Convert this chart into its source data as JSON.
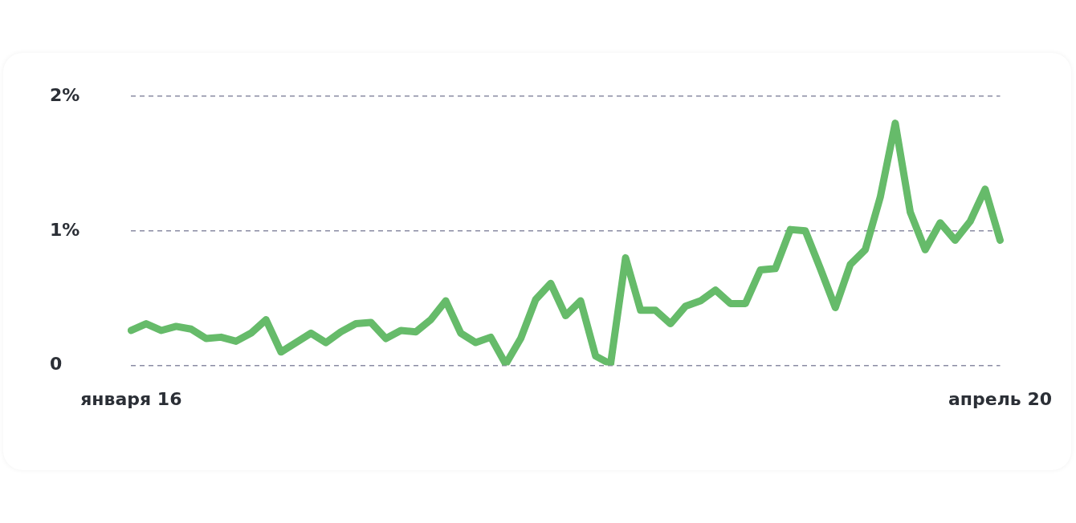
{
  "chart_data": {
    "type": "line",
    "categories": [
      "января 16",
      null,
      null,
      null,
      null,
      null,
      null,
      null,
      null,
      null,
      null,
      null,
      null,
      null,
      null,
      null,
      null,
      null,
      null,
      null,
      null,
      null,
      null,
      null,
      null,
      null,
      null,
      null,
      null,
      null,
      null,
      null,
      null,
      null,
      null,
      null,
      null,
      null,
      null,
      null,
      null,
      null,
      null,
      null,
      null,
      null,
      null,
      null,
      null,
      null,
      null,
      null,
      null,
      null,
      null,
      null,
      null,
      null,
      "апрель 20"
    ],
    "series": [
      {
        "color": "#66bb6a",
        "values": [
          0.26,
          0.31,
          0.26,
          0.29,
          0.27,
          0.2,
          0.21,
          0.18,
          0.24,
          0.34,
          0.1,
          0.17,
          0.24,
          0.17,
          0.25,
          0.31,
          0.32,
          0.2,
          0.26,
          0.25,
          0.34,
          0.48,
          0.24,
          0.17,
          0.21,
          0.01,
          0.2,
          0.49,
          0.61,
          0.37,
          0.48,
          0.07,
          0.01,
          0.8,
          0.41,
          0.41,
          0.31,
          0.44,
          0.48,
          0.56,
          0.46,
          0.46,
          0.71,
          0.72,
          1.01,
          1.0,
          0.72,
          0.43,
          0.75,
          0.86,
          1.25,
          1.8,
          1.14,
          0.86,
          1.06,
          0.93,
          1.07,
          1.31,
          0.93
        ]
      }
    ],
    "ylim": [
      0,
      2
    ],
    "yticks": [
      0,
      {
        "value": 1,
        "label": "1%"
      },
      {
        "value": 2,
        "label": "2%"
      }
    ],
    "grid": "y",
    "marker": "none",
    "line_style": "solid",
    "legend": false
  }
}
